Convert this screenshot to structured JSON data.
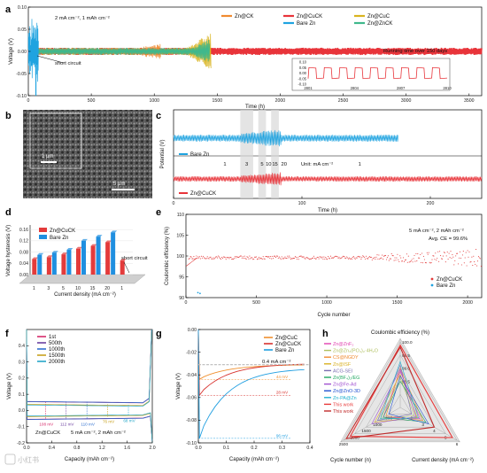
{
  "panels": {
    "a": {
      "label": "a"
    },
    "b": {
      "label": "b",
      "inset_scale": "1 µm",
      "main_scale": "5 µm"
    },
    "c": {
      "label": "c"
    },
    "d": {
      "label": "d"
    },
    "e": {
      "label": "e"
    },
    "f": {
      "label": "f"
    },
    "g": {
      "label": "g"
    },
    "h": {
      "label": "h"
    }
  },
  "watermark": "小红书",
  "chart_data": [
    {
      "id": "a",
      "type": "line",
      "xlabel": "Time (h)",
      "ylabel": "Voltage (V)",
      "xlim": [
        0,
        3600
      ],
      "ylim": [
        -0.1,
        0.1
      ],
      "xticks": [
        0,
        500,
        1000,
        1500,
        2000,
        2500,
        3000,
        3500
      ],
      "yticks": [
        -0.1,
        -0.05,
        0.0,
        0.05,
        0.1
      ],
      "conditions": "2 mA cm⁻², 1 mAh cm⁻²",
      "annotations": [
        "short circuit",
        "Running time over 150 days"
      ],
      "series": [
        {
          "name": "Zn@CK",
          "color": "#f08a30",
          "end_time": 1050
        },
        {
          "name": "Zn@CuCK",
          "color": "#e8343a",
          "end_time": 3600
        },
        {
          "name": "Zn@CuC",
          "color": "#d9b41f",
          "end_time": 1450
        },
        {
          "name": "Bare Zn",
          "color": "#1fa3e0",
          "end_time": 80
        },
        {
          "name": "Zn@ZnCK",
          "color": "#3fb88c",
          "end_time": 1440
        }
      ],
      "inset": {
        "xticks": [
          2801,
          2804,
          2807,
          2810
        ],
        "yticks": [
          0.1,
          0.05,
          0.0,
          -0.05,
          -0.1
        ]
      }
    },
    {
      "id": "c",
      "type": "line",
      "xlabel": "Time (h)",
      "ylabel": "Potential (V)",
      "xlim": [
        0,
        240
      ],
      "xticks": [
        0,
        100,
        200
      ],
      "unit_note": "Unit: mA cm⁻²",
      "step_labels": [
        "1",
        "3",
        "5",
        "10",
        "15",
        "20",
        "1"
      ],
      "series": [
        {
          "name": "Bare Zn",
          "color": "#1fa3e0",
          "end_time": 175
        },
        {
          "name": "Zn@CuCK",
          "color": "#e8343a",
          "end_time": 240
        }
      ]
    },
    {
      "id": "d",
      "type": "bar",
      "xlabel": "Current density (mA cm⁻²)",
      "ylabel": "Voltage hysteresis (V)",
      "ylim": [
        0,
        0.17
      ],
      "yticks": [
        0.0,
        0.04,
        0.08,
        0.12,
        0.16
      ],
      "categories": [
        "1",
        "3",
        "5",
        "10",
        "15",
        "20",
        "1"
      ],
      "annotation": "short circuit",
      "series": [
        {
          "name": "Zn@CuCK",
          "color": "#e33b3b",
          "values": [
            0.055,
            0.062,
            0.072,
            0.092,
            0.102,
            0.115,
            0.05
          ]
        },
        {
          "name": "Bare Zn",
          "color": "#1f8fe0",
          "values": [
            0.07,
            0.078,
            0.088,
            0.12,
            0.135,
            0.15,
            null
          ]
        }
      ]
    },
    {
      "id": "e",
      "type": "scatter",
      "xlabel": "Cycle number",
      "ylabel": "Coulombic efficiency (%)",
      "xlim": [
        0,
        2100
      ],
      "ylim": [
        90,
        110
      ],
      "xticks": [
        0,
        500,
        1000,
        1500,
        2000
      ],
      "yticks": [
        90,
        95,
        100,
        105,
        110
      ],
      "conditions": "5 mA cm⁻², 2 mAh cm⁻²",
      "avg_ce": "Avg. CE = 99.6%",
      "series": [
        {
          "name": "Zn@CuCK",
          "color": "#e33b3b",
          "mean": 99.6,
          "end_cycle": 2100
        },
        {
          "name": "Bare Zn",
          "color": "#1fa3e0",
          "points": [
            [
              85,
              91.2
            ],
            [
              100,
              91.0
            ]
          ]
        }
      ]
    },
    {
      "id": "f",
      "type": "line",
      "xlabel": "Capacity (mAh cm⁻²)",
      "ylabel": "Voltage (V)",
      "xlim": [
        0,
        2.0
      ],
      "ylim": [
        -0.2,
        0.5
      ],
      "xticks": [
        0.0,
        0.4,
        0.8,
        1.2,
        1.6,
        2.0
      ],
      "yticks": [
        -0.2,
        -0.1,
        0.0,
        0.1,
        0.2,
        0.3,
        0.4
      ],
      "caption": "Zn@CuCK",
      "conditions": "5 mA cm⁻², 2 mAh cm⁻²",
      "series": [
        {
          "name": "1st",
          "color": "#d62a6a",
          "gap": "108 mV"
        },
        {
          "name": "500th",
          "color": "#6b3fa0",
          "gap": "112 mV"
        },
        {
          "name": "1000th",
          "color": "#2f6fd0",
          "gap": "110 mV"
        },
        {
          "name": "1500th",
          "color": "#c8a21e",
          "gap": "76 mV"
        },
        {
          "name": "2000th",
          "color": "#25a7c8",
          "gap": "68 mV"
        }
      ]
    },
    {
      "id": "g",
      "type": "line",
      "xlabel": "Capacity (mAh cm⁻²)",
      "ylabel": "Voltage (V)",
      "xlim": [
        0,
        0.4
      ],
      "ylim": [
        -0.1,
        0.0
      ],
      "xticks": [
        0.0,
        0.1,
        0.2,
        0.3,
        0.4
      ],
      "yticks": [
        -0.1,
        -0.08,
        -0.06,
        -0.04,
        -0.02,
        0.0
      ],
      "current": "0.4 mA cm⁻²",
      "series": [
        {
          "name": "Zn@CuC",
          "color": "#f0902f",
          "overpotential": "44 mV"
        },
        {
          "name": "Zn@CuCK",
          "color": "#d8322e",
          "overpotential": "28 mV"
        },
        {
          "name": "Bare Zn",
          "color": "#1f9ee0",
          "overpotential": "96 mV"
        }
      ]
    },
    {
      "id": "h",
      "type": "radar",
      "axes": [
        "Coulombic efficiency (%)",
        "Current density (mA cm⁻²)",
        "Cycle number (n)"
      ],
      "ticks": {
        "ce": [
          "100.0",
          "99.5",
          "99.0",
          "98.5"
        ],
        "current": [
          "2",
          "3",
          "4",
          "5",
          "6"
        ],
        "cycle": [
          "2500",
          "2000",
          "1500",
          "1000",
          "500"
        ]
      },
      "series": [
        {
          "name": "Zn@ZnF₂",
          "color": "#e040b0"
        },
        {
          "name": "Zn@Zn₃(PO₄)₂·4H₂O",
          "color": "#b0c060"
        },
        {
          "name": "CS@NGDY",
          "color": "#f08a30"
        },
        {
          "name": "Zn@ISF",
          "color": "#d8b020"
        },
        {
          "name": "ACG-SEI",
          "color": "#7a6fb0"
        },
        {
          "name": "Zn(BF₄)₂/EG",
          "color": "#20a860"
        },
        {
          "name": "Zn@Fe-Ad",
          "color": "#a050d0"
        },
        {
          "name": "Zn@ZnO-3D",
          "color": "#2050d0"
        },
        {
          "name": "Zn-PA@Zn",
          "color": "#20b0d0"
        },
        {
          "name": "This work",
          "color": "#e83a3a"
        },
        {
          "name": "This work",
          "color": "#c02a2a"
        }
      ]
    }
  ]
}
